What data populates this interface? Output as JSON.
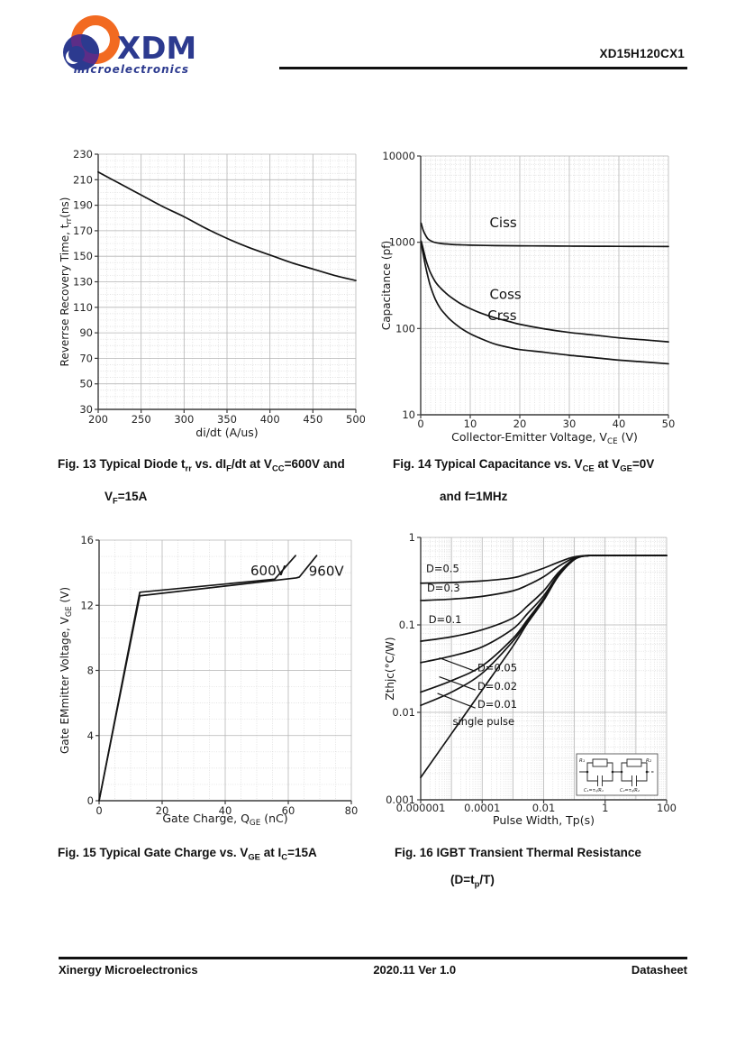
{
  "header": {
    "brand": "XDM",
    "brand_sub": "microelectronics",
    "part_number": "XD15H120CX1"
  },
  "colors": {
    "logo_orange": "#f26a21",
    "logo_navy": "#2c3a8f",
    "logo_purple": "#5c2d87",
    "curve": "#141414",
    "grid_major": "#b5b5b5",
    "grid_minor": "#d8d8d8",
    "axis": "#3c3c3c"
  },
  "figures": [
    {
      "caption_line1": "Fig. 13 Typical Diode t~rr~ vs. dI~F~/dt at V~CC~=600V and",
      "caption_line2": "V~F~=15A"
    },
    {
      "caption_line1": "Fig. 14 Typical Capacitance vs. V~CE~ at V~GE~=0V",
      "caption_line2": "and f=1MHz"
    },
    {
      "caption_line1": "Fig. 15 Typical Gate Charge vs. V~GE~ at I~C~=15A",
      "caption_line2": ""
    },
    {
      "caption_line1": "Fig. 16 IGBT Transient Thermal Resistance",
      "caption_line2": "(D=t~p~/T)"
    }
  ],
  "chart_data": [
    {
      "id": "fig13",
      "type": "line",
      "title": "Typical Diode trr vs. dIF/dt",
      "xlabel": "di/dt (A/us)",
      "ylabel": "Reverrse Recovery Time, t~rr~(ns)",
      "x": {
        "scale": "linear",
        "min": 200,
        "max": 500,
        "major_step": 50,
        "minor_step": 10,
        "ticks": [
          [
            200,
            "200"
          ],
          [
            250,
            "250"
          ],
          [
            300,
            "300"
          ],
          [
            350,
            "350"
          ],
          [
            400,
            "400"
          ],
          [
            450,
            "450"
          ],
          [
            500,
            "500"
          ]
        ]
      },
      "y": {
        "scale": "linear",
        "min": 30,
        "max": 230,
        "major_step": 20,
        "minor_step": 5,
        "ticks": [
          [
            30,
            "30"
          ],
          [
            50,
            "50"
          ],
          [
            70,
            "70"
          ],
          [
            90,
            "90"
          ],
          [
            110,
            "110"
          ],
          [
            130,
            "130"
          ],
          [
            150,
            "150"
          ],
          [
            170,
            "170"
          ],
          [
            190,
            "190"
          ],
          [
            210,
            "210"
          ],
          [
            230,
            "230"
          ]
        ]
      },
      "smooth": true,
      "series": [
        {
          "name": "trr",
          "points": [
            [
              200,
              216
            ],
            [
              225,
              207
            ],
            [
              250,
              198
            ],
            [
              275,
              189
            ],
            [
              300,
              181
            ],
            [
              325,
              172
            ],
            [
              350,
              164
            ],
            [
              375,
              157
            ],
            [
              400,
              151
            ],
            [
              425,
              145
            ],
            [
              450,
              140
            ],
            [
              475,
              135
            ],
            [
              500,
              131
            ]
          ]
        }
      ],
      "annotations": []
    },
    {
      "id": "fig14",
      "type": "line",
      "title": "Typical Capacitance vs. VCE",
      "xlabel": "Collector-Emitter Voltage, V~CE~ (V)",
      "ylabel": "Capacitance (pf)",
      "x": {
        "scale": "linear",
        "min": 0,
        "max": 50,
        "major_step": 10,
        "minor_step": 1,
        "ticks": [
          [
            0,
            "0"
          ],
          [
            10,
            "10"
          ],
          [
            20,
            "20"
          ],
          [
            30,
            "30"
          ],
          [
            40,
            "40"
          ],
          [
            50,
            "50"
          ]
        ]
      },
      "y": {
        "scale": "log",
        "min": 10,
        "max": 10000,
        "ticks": [
          [
            10,
            "10"
          ],
          [
            100,
            "100"
          ],
          [
            1000,
            "1000"
          ],
          [
            10000,
            "10000"
          ]
        ]
      },
      "smooth": true,
      "ann_size": 15,
      "series": [
        {
          "name": "Ciss",
          "points": [
            [
              0.1,
              1660
            ],
            [
              0.5,
              1380
            ],
            [
              1,
              1200
            ],
            [
              1.5,
              1090
            ],
            [
              2.5,
              1010
            ],
            [
              4,
              968
            ],
            [
              6,
              946
            ],
            [
              8,
              934
            ],
            [
              10,
              926
            ],
            [
              15,
              915
            ],
            [
              20,
              910
            ],
            [
              25,
              906
            ],
            [
              30,
              902
            ],
            [
              35,
              899
            ],
            [
              40,
              897
            ],
            [
              45,
              895
            ],
            [
              50,
              893
            ]
          ]
        },
        {
          "name": "Coss",
          "points": [
            [
              0.1,
              1030
            ],
            [
              0.5,
              840
            ],
            [
              1,
              640
            ],
            [
              1.5,
              520
            ],
            [
              2,
              440
            ],
            [
              3,
              345
            ],
            [
              4,
              295
            ],
            [
              5,
              260
            ],
            [
              6,
              233
            ],
            [
              8,
              195
            ],
            [
              10,
              170
            ],
            [
              12,
              152
            ],
            [
              15,
              133
            ],
            [
              18,
              120
            ],
            [
              20,
              112
            ],
            [
              25,
              99
            ],
            [
              30,
              90
            ],
            [
              35,
              84
            ],
            [
              40,
              78
            ],
            [
              45,
              74
            ],
            [
              50,
              70
            ]
          ]
        },
        {
          "name": "Crss",
          "points": [
            [
              0.1,
              960
            ],
            [
              0.5,
              730
            ],
            [
              1,
              520
            ],
            [
              1.5,
              390
            ],
            [
              2,
              305
            ],
            [
              3,
              215
            ],
            [
              4,
              170
            ],
            [
              5,
              145
            ],
            [
              6,
              126
            ],
            [
              8,
              102
            ],
            [
              10,
              87
            ],
            [
              12,
              77
            ],
            [
              15,
              66
            ],
            [
              18,
              60
            ],
            [
              20,
              57
            ],
            [
              25,
              53
            ],
            [
              30,
              49
            ],
            [
              35,
              46
            ],
            [
              40,
              43
            ],
            [
              45,
              41
            ],
            [
              50,
              39
            ]
          ]
        }
      ],
      "annotations": [
        {
          "text": "Ciss",
          "x": 13.9,
          "y": 1500
        },
        {
          "text": "Coss",
          "x": 13.9,
          "y": 220
        },
        {
          "text": "Crss",
          "x": 13.5,
          "y": 125
        }
      ]
    },
    {
      "id": "fig15",
      "type": "line",
      "title": "Typical Gate Charge vs. VGE",
      "xlabel": "Gate Charge, Q~GE~ (nC)",
      "ylabel": "Gate  EMmitter Voltage, V~GE~ (V)",
      "x": {
        "scale": "linear",
        "min": 0,
        "max": 80,
        "major_step": 20,
        "minor_step": 5,
        "ticks": [
          [
            0,
            "0"
          ],
          [
            20,
            "20"
          ],
          [
            40,
            "40"
          ],
          [
            60,
            "60"
          ],
          [
            80,
            "80"
          ]
        ]
      },
      "y": {
        "scale": "linear",
        "min": 0,
        "max": 16,
        "major_step": 4,
        "minor_step": 1,
        "ticks": [
          [
            0,
            "0"
          ],
          [
            4,
            "4"
          ],
          [
            8,
            "8"
          ],
          [
            12,
            "12"
          ],
          [
            16,
            "16"
          ]
        ]
      },
      "smooth": false,
      "ann_size": 15,
      "series": [
        {
          "name": "600V",
          "points": [
            [
              0,
              0
            ],
            [
              12.9,
              12.8
            ],
            [
              55.7,
              13.6
            ],
            [
              62.3,
              15.05
            ]
          ]
        },
        {
          "name": "960V",
          "points": [
            [
              0,
              0
            ],
            [
              12.9,
              12.58
            ],
            [
              62.5,
              13.68
            ],
            [
              63.5,
              13.73
            ],
            [
              69,
              15.05
            ]
          ]
        }
      ],
      "annotations": [
        {
          "text": "600V",
          "x": 48,
          "y": 13.85
        },
        {
          "text": "960V",
          "x": 66.5,
          "y": 13.8
        }
      ]
    },
    {
      "id": "fig16",
      "type": "line",
      "title": "IGBT Transient Thermal Resistance",
      "xlabel": "Pulse Width, Tp(s)",
      "ylabel": "Zthjc(°C/W)",
      "x": {
        "scale": "log",
        "min": 1e-06,
        "max": 100,
        "ticks": [
          [
            1e-06,
            "0.000001"
          ],
          [
            0.0001,
            "0.0001"
          ],
          [
            0.01,
            "0.01"
          ],
          [
            1,
            "1"
          ],
          [
            100,
            "100"
          ]
        ]
      },
      "y": {
        "scale": "log",
        "min": 0.001,
        "max": 1,
        "ticks": [
          [
            0.001,
            "0.001"
          ],
          [
            0.01,
            "0.01"
          ],
          [
            0.1,
            "0.1"
          ],
          [
            1,
            "1"
          ]
        ]
      },
      "smooth": true,
      "ann_size": 11.5,
      "series": [
        {
          "name": "D=0.5",
          "points": [
            [
              1e-06,
              0.3
            ],
            [
              1e-05,
              0.305
            ],
            [
              0.0001,
              0.318
            ],
            [
              0.001,
              0.345
            ],
            [
              0.003,
              0.385
            ],
            [
              0.01,
              0.445
            ],
            [
              0.03,
              0.52
            ],
            [
              0.1,
              0.6
            ],
            [
              0.3,
              0.62
            ],
            [
              1,
              0.62
            ],
            [
              100,
              0.62
            ]
          ]
        },
        {
          "name": "D=0.3",
          "points": [
            [
              1e-06,
              0.19
            ],
            [
              1e-05,
              0.197
            ],
            [
              0.0001,
              0.212
            ],
            [
              0.001,
              0.245
            ],
            [
              0.003,
              0.285
            ],
            [
              0.01,
              0.355
            ],
            [
              0.03,
              0.465
            ],
            [
              0.1,
              0.585
            ],
            [
              0.3,
              0.62
            ],
            [
              1,
              0.62
            ],
            [
              100,
              0.62
            ]
          ]
        },
        {
          "name": "D=0.1",
          "points": [
            [
              1e-06,
              0.065
            ],
            [
              1e-05,
              0.073
            ],
            [
              0.0001,
              0.088
            ],
            [
              0.001,
              0.12
            ],
            [
              0.003,
              0.165
            ],
            [
              0.01,
              0.245
            ],
            [
              0.03,
              0.395
            ],
            [
              0.1,
              0.57
            ],
            [
              0.3,
              0.62
            ],
            [
              1,
              0.62
            ],
            [
              100,
              0.62
            ]
          ]
        },
        {
          "name": "D=0.05",
          "points": [
            [
              1e-06,
              0.037
            ],
            [
              1e-05,
              0.044
            ],
            [
              0.0001,
              0.056
            ],
            [
              0.001,
              0.09
            ],
            [
              0.003,
              0.135
            ],
            [
              0.01,
              0.215
            ],
            [
              0.03,
              0.375
            ],
            [
              0.1,
              0.565
            ],
            [
              0.3,
              0.62
            ],
            [
              1,
              0.62
            ],
            [
              100,
              0.62
            ]
          ]
        },
        {
          "name": "D=0.02",
          "points": [
            [
              1e-06,
              0.017
            ],
            [
              1e-05,
              0.023
            ],
            [
              0.0001,
              0.034
            ],
            [
              0.001,
              0.07
            ],
            [
              0.003,
              0.115
            ],
            [
              0.01,
              0.2
            ],
            [
              0.03,
              0.365
            ],
            [
              0.1,
              0.56
            ],
            [
              0.3,
              0.62
            ],
            [
              1,
              0.62
            ],
            [
              100,
              0.62
            ]
          ]
        },
        {
          "name": "D=0.01",
          "points": [
            [
              1e-06,
              0.012
            ],
            [
              1e-05,
              0.017
            ],
            [
              0.0001,
              0.028
            ],
            [
              0.001,
              0.065
            ],
            [
              0.003,
              0.11
            ],
            [
              0.01,
              0.195
            ],
            [
              0.03,
              0.36
            ],
            [
              0.1,
              0.56
            ],
            [
              0.3,
              0.62
            ],
            [
              1,
              0.62
            ],
            [
              100,
              0.62
            ]
          ]
        },
        {
          "name": "single pulse",
          "points": [
            [
              1e-06,
              0.0018
            ],
            [
              1e-05,
              0.0057
            ],
            [
              0.0001,
              0.018
            ],
            [
              0.001,
              0.057
            ],
            [
              0.003,
              0.105
            ],
            [
              0.01,
              0.19
            ],
            [
              0.03,
              0.36
            ],
            [
              0.1,
              0.56
            ],
            [
              0.2,
              0.615
            ],
            [
              0.3,
              0.62
            ],
            [
              1,
              0.62
            ],
            [
              10,
              0.62
            ],
            [
              100,
              0.62
            ]
          ]
        }
      ],
      "annotations": [
        {
          "text": "D=0.5",
          "x": 1.5e-06,
          "y": 0.4
        },
        {
          "text": "D=0.3",
          "x": 1.6e-06,
          "y": 0.24
        },
        {
          "text": "D=0.1",
          "x": 1.8e-06,
          "y": 0.105
        },
        {
          "text": "D=0.05",
          "x": 7e-05,
          "y": 0.0295,
          "leader": [
            [
              4e-06,
              0.042
            ],
            [
              6e-05,
              0.0295
            ]
          ]
        },
        {
          "text": "D=0.02",
          "x": 7e-05,
          "y": 0.018,
          "leader": [
            [
              4e-06,
              0.0255
            ],
            [
              6e-05,
              0.018
            ]
          ]
        },
        {
          "text": "D=0.01",
          "x": 7e-05,
          "y": 0.0112,
          "leader": [
            [
              3.5e-06,
              0.0165
            ],
            [
              6e-05,
              0.0112
            ]
          ]
        },
        {
          "text": "single pulse",
          "x": 1.1e-05,
          "y": 0.0072
        }
      ],
      "inset": {
        "r1": "R₁",
        "r2": "R₂",
        "c1": "C₁=τ₁/R₁",
        "c2": "C₂=τ₂/R₂"
      }
    }
  ],
  "footer": {
    "company": "Xinergy  Microelectronics",
    "version": "2020.11  Ver  1.0",
    "doc_type": "Datasheet"
  }
}
